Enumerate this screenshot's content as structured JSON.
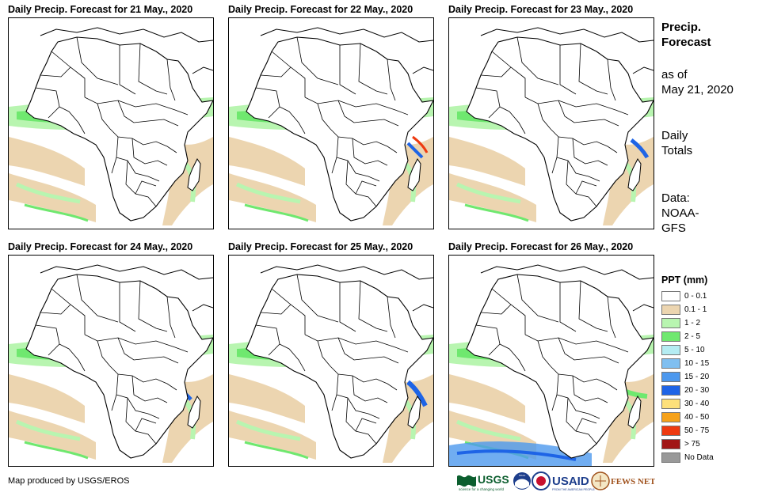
{
  "panels": [
    {
      "title": "Daily Precip. Forecast for 21 May., 2020"
    },
    {
      "title": "Daily Precip. Forecast for 22 May., 2020"
    },
    {
      "title": "Daily Precip. Forecast for 23 May., 2020"
    },
    {
      "title": "Daily Precip. Forecast for 24 May., 2020"
    },
    {
      "title": "Daily Precip. Forecast for 25 May., 2020"
    },
    {
      "title": "Daily Precip. Forecast for 26 May., 2020"
    }
  ],
  "side": {
    "title_line1": "Precip.",
    "title_line2": "Forecast",
    "asof_line1": "as of",
    "asof_line2": "May 21, 2020",
    "totals_line1": "Daily",
    "totals_line2": "Totals",
    "data_line1": "Data:",
    "data_line2": "NOAA-",
    "data_line3": "GFS"
  },
  "legend": {
    "title": "PPT (mm)",
    "items": [
      {
        "label": "0 - 0.1",
        "color": "#ffffff"
      },
      {
        "label": "0.1 - 1",
        "color": "#ecd5b0"
      },
      {
        "label": "1 - 2",
        "color": "#b8f5b0"
      },
      {
        "label": "2 - 5",
        "color": "#6fe86f"
      },
      {
        "label": "5 - 10",
        "color": "#b4ecf2"
      },
      {
        "label": "10 - 15",
        "color": "#80bff0"
      },
      {
        "label": "15 - 20",
        "color": "#4c98ee"
      },
      {
        "label": "20 - 30",
        "color": "#1e64e6"
      },
      {
        "label": "30 - 40",
        "color": "#fde07a"
      },
      {
        "label": "40 - 50",
        "color": "#f6a21a"
      },
      {
        "label": "50 - 75",
        "color": "#ee3a10"
      },
      {
        "label": "> 75",
        "color": "#a11616"
      },
      {
        "label": "No Data",
        "color": "#999999"
      }
    ]
  },
  "credit": "Map produced by USGS/EROS",
  "logos": {
    "usgs": "USGS",
    "usgs_tagline": "science for a changing world",
    "noaa": "NOAA",
    "usaid": "USAID",
    "usaid_tagline": "FROM THE AMERICAN PEOPLE",
    "fewsnet": "FEWS NET"
  }
}
